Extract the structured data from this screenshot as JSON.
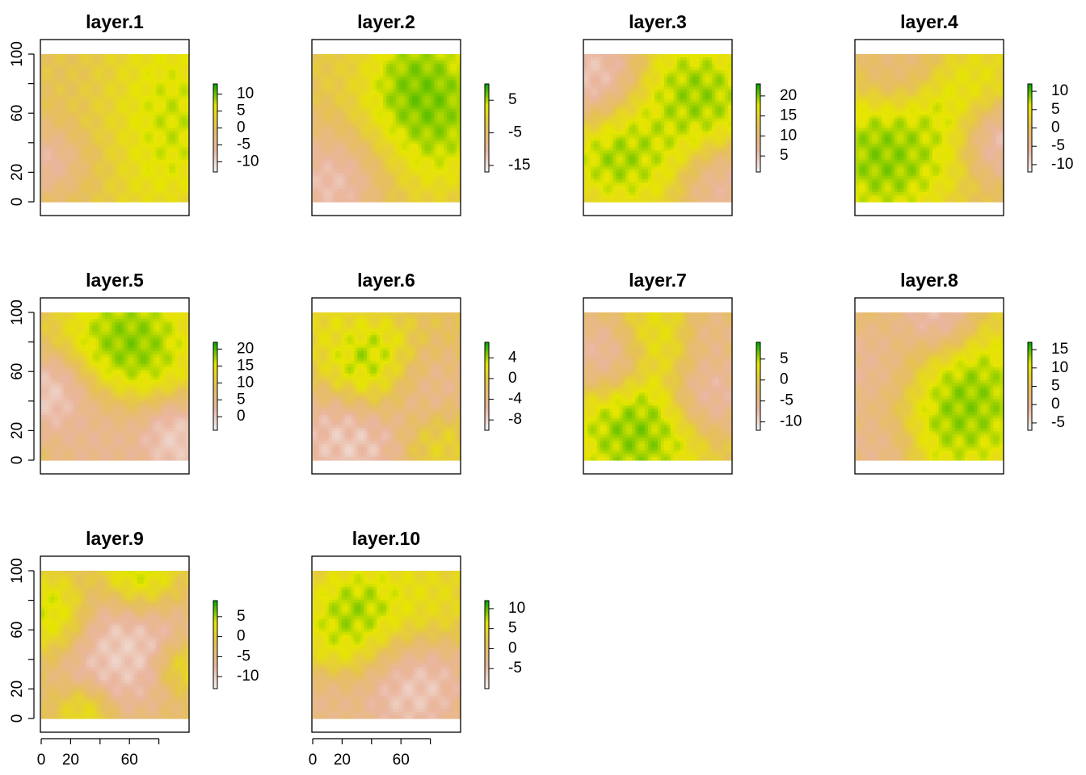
{
  "figure": {
    "background": "#ffffff",
    "colormap": [
      "#F2F2F2",
      "#EAB69F",
      "#E6C05A",
      "#E6E600",
      "#00A600"
    ]
  },
  "chart_data": [
    {
      "type": "heatmap",
      "title": "layer.1",
      "xlim": [
        0,
        100
      ],
      "ylim": [
        0,
        100
      ],
      "x_ticks": [
        0,
        20,
        60
      ],
      "y_ticks": [
        0,
        20,
        60,
        100
      ],
      "show_x_axis": false,
      "show_y_axis": true,
      "zlim": [
        -13,
        13
      ],
      "legend_ticks": [
        10,
        5,
        0,
        -5,
        -10
      ],
      "features": [
        {
          "x": 65,
          "y": 55,
          "value": 11,
          "radius": 35
        },
        {
          "x": 45,
          "y": 80,
          "value": 4,
          "radius": 22
        },
        {
          "x": 25,
          "y": 40,
          "value": -6,
          "radius": 25
        },
        {
          "x": 8,
          "y": 30,
          "value": -12,
          "radius": 12
        },
        {
          "x": 30,
          "y": 85,
          "value": -3,
          "radius": 18
        }
      ]
    },
    {
      "type": "heatmap",
      "title": "layer.2",
      "xlim": [
        0,
        100
      ],
      "ylim": [
        0,
        100
      ],
      "x_ticks": [
        0,
        20,
        60
      ],
      "y_ticks": [
        0,
        20,
        60,
        100
      ],
      "show_x_axis": false,
      "show_y_axis": false,
      "zlim": [
        -17,
        10
      ],
      "legend_ticks": [
        5,
        -5,
        -15
      ],
      "features": [
        {
          "x": 70,
          "y": 60,
          "value": 9,
          "radius": 30
        },
        {
          "x": 65,
          "y": 75,
          "value": 8,
          "radius": 20
        },
        {
          "x": 20,
          "y": 30,
          "value": -10,
          "radius": 25
        },
        {
          "x": 15,
          "y": 15,
          "value": -16,
          "radius": 14
        },
        {
          "x": 20,
          "y": 85,
          "value": -2,
          "radius": 20
        }
      ]
    },
    {
      "type": "heatmap",
      "title": "layer.3",
      "xlim": [
        0,
        100
      ],
      "ylim": [
        0,
        100
      ],
      "x_ticks": [
        0,
        20,
        60
      ],
      "y_ticks": [
        0,
        20,
        60,
        100
      ],
      "show_x_axis": false,
      "show_y_axis": false,
      "zlim": [
        1,
        23
      ],
      "legend_ticks": [
        20,
        15,
        10,
        5
      ],
      "features": [
        {
          "x": 75,
          "y": 70,
          "value": 22,
          "radius": 22
        },
        {
          "x": 25,
          "y": 35,
          "value": 22,
          "radius": 20
        },
        {
          "x": 55,
          "y": 45,
          "value": 18,
          "radius": 25
        },
        {
          "x": 10,
          "y": 80,
          "value": 2,
          "radius": 18
        },
        {
          "x": 90,
          "y": 15,
          "value": 4,
          "radius": 15
        }
      ]
    },
    {
      "type": "heatmap",
      "title": "layer.4",
      "xlim": [
        0,
        100
      ],
      "ylim": [
        0,
        100
      ],
      "x_ticks": [
        0,
        20,
        60
      ],
      "y_ticks": [
        0,
        20,
        60,
        100
      ],
      "show_x_axis": false,
      "show_y_axis": false,
      "zlim": [
        -12,
        12
      ],
      "legend_ticks": [
        10,
        5,
        0,
        -5,
        -10
      ],
      "features": [
        {
          "x": 20,
          "y": 30,
          "value": 11,
          "radius": 25
        },
        {
          "x": 60,
          "y": 55,
          "value": 8,
          "radius": 20
        },
        {
          "x": 85,
          "y": 80,
          "value": 6,
          "radius": 15
        },
        {
          "x": 95,
          "y": 45,
          "value": -11,
          "radius": 15
        },
        {
          "x": 30,
          "y": 90,
          "value": -4,
          "radius": 15
        }
      ]
    },
    {
      "type": "heatmap",
      "title": "layer.5",
      "xlim": [
        0,
        100
      ],
      "ylim": [
        0,
        100
      ],
      "x_ticks": [
        0,
        20,
        60
      ],
      "y_ticks": [
        0,
        20,
        60,
        100
      ],
      "show_x_axis": false,
      "show_y_axis": true,
      "zlim": [
        -4,
        22
      ],
      "legend_ticks": [
        20,
        15,
        10,
        5,
        0
      ],
      "features": [
        {
          "x": 60,
          "y": 78,
          "value": 21,
          "radius": 24
        },
        {
          "x": 8,
          "y": 45,
          "value": -3,
          "radius": 15
        },
        {
          "x": 90,
          "y": 15,
          "value": -3,
          "radius": 15
        },
        {
          "x": 40,
          "y": 15,
          "value": 2,
          "radius": 20
        }
      ]
    },
    {
      "type": "heatmap",
      "title": "layer.6",
      "xlim": [
        0,
        100
      ],
      "ylim": [
        0,
        100
      ],
      "x_ticks": [
        0,
        20,
        60
      ],
      "y_ticks": [
        0,
        20,
        60,
        100
      ],
      "show_x_axis": false,
      "show_y_axis": false,
      "zlim": [
        -10,
        7
      ],
      "legend_ticks": [
        4,
        0,
        -4,
        -8
      ],
      "features": [
        {
          "x": 40,
          "y": 62,
          "value": 6,
          "radius": 18
        },
        {
          "x": 10,
          "y": 90,
          "value": 2,
          "radius": 12
        },
        {
          "x": 25,
          "y": 15,
          "value": -9,
          "radius": 20
        },
        {
          "x": 75,
          "y": 45,
          "value": -6,
          "radius": 18
        },
        {
          "x": 85,
          "y": 15,
          "value": 2,
          "radius": 12
        }
      ]
    },
    {
      "type": "heatmap",
      "title": "layer.7",
      "xlim": [
        0,
        100
      ],
      "ylim": [
        0,
        100
      ],
      "x_ticks": [
        0,
        20,
        60
      ],
      "y_ticks": [
        0,
        20,
        60,
        100
      ],
      "show_x_axis": false,
      "show_y_axis": false,
      "zlim": [
        -12,
        9
      ],
      "legend_ticks": [
        5,
        0,
        -5,
        -10
      ],
      "features": [
        {
          "x": 35,
          "y": 20,
          "value": 8,
          "radius": 25
        },
        {
          "x": 50,
          "y": 85,
          "value": 4,
          "radius": 15
        },
        {
          "x": 15,
          "y": 70,
          "value": -9,
          "radius": 15
        },
        {
          "x": 85,
          "y": 45,
          "value": -9,
          "radius": 15
        },
        {
          "x": 85,
          "y": 85,
          "value": -6,
          "radius": 12
        }
      ]
    },
    {
      "type": "heatmap",
      "title": "layer.8",
      "xlim": [
        0,
        100
      ],
      "ylim": [
        0,
        100
      ],
      "x_ticks": [
        0,
        20,
        60
      ],
      "y_ticks": [
        0,
        20,
        60,
        100
      ],
      "show_x_axis": false,
      "show_y_axis": false,
      "zlim": [
        -7,
        17
      ],
      "legend_ticks": [
        15,
        10,
        5,
        0,
        -5
      ],
      "features": [
        {
          "x": 70,
          "y": 40,
          "value": 16,
          "radius": 30
        },
        {
          "x": 55,
          "y": 95,
          "value": -6,
          "radius": 15
        },
        {
          "x": 15,
          "y": 60,
          "value": -3,
          "radius": 20
        },
        {
          "x": 15,
          "y": 10,
          "value": -2,
          "radius": 15
        }
      ]
    },
    {
      "type": "heatmap",
      "title": "layer.9",
      "xlim": [
        0,
        100
      ],
      "ylim": [
        0,
        100
      ],
      "x_ticks": [
        0,
        20,
        60
      ],
      "y_ticks": [
        0,
        20,
        60,
        100
      ],
      "show_x_axis": true,
      "show_y_axis": true,
      "zlim": [
        -13,
        9
      ],
      "legend_ticks": [
        5,
        0,
        -5,
        -10
      ],
      "features": [
        {
          "x": 55,
          "y": 50,
          "value": -12,
          "radius": 25
        },
        {
          "x": 10,
          "y": 70,
          "value": 7,
          "radius": 15
        },
        {
          "x": 65,
          "y": 95,
          "value": 8,
          "radius": 15
        },
        {
          "x": 30,
          "y": 5,
          "value": 4,
          "radius": 10
        },
        {
          "x": 95,
          "y": 35,
          "value": 4,
          "radius": 10
        }
      ]
    },
    {
      "type": "heatmap",
      "title": "layer.10",
      "xlim": [
        0,
        100
      ],
      "ylim": [
        0,
        100
      ],
      "x_ticks": [
        0,
        20,
        60
      ],
      "y_ticks": [
        0,
        20,
        60,
        100
      ],
      "show_x_axis": true,
      "show_y_axis": false,
      "zlim": [
        -10,
        12
      ],
      "legend_ticks": [
        10,
        5,
        0,
        -5
      ],
      "features": [
        {
          "x": 35,
          "y": 65,
          "value": 11,
          "radius": 22
        },
        {
          "x": 80,
          "y": 80,
          "value": 6,
          "radius": 18
        },
        {
          "x": 65,
          "y": 25,
          "value": -9,
          "radius": 22
        },
        {
          "x": 10,
          "y": 10,
          "value": -4,
          "radius": 12
        }
      ]
    }
  ]
}
